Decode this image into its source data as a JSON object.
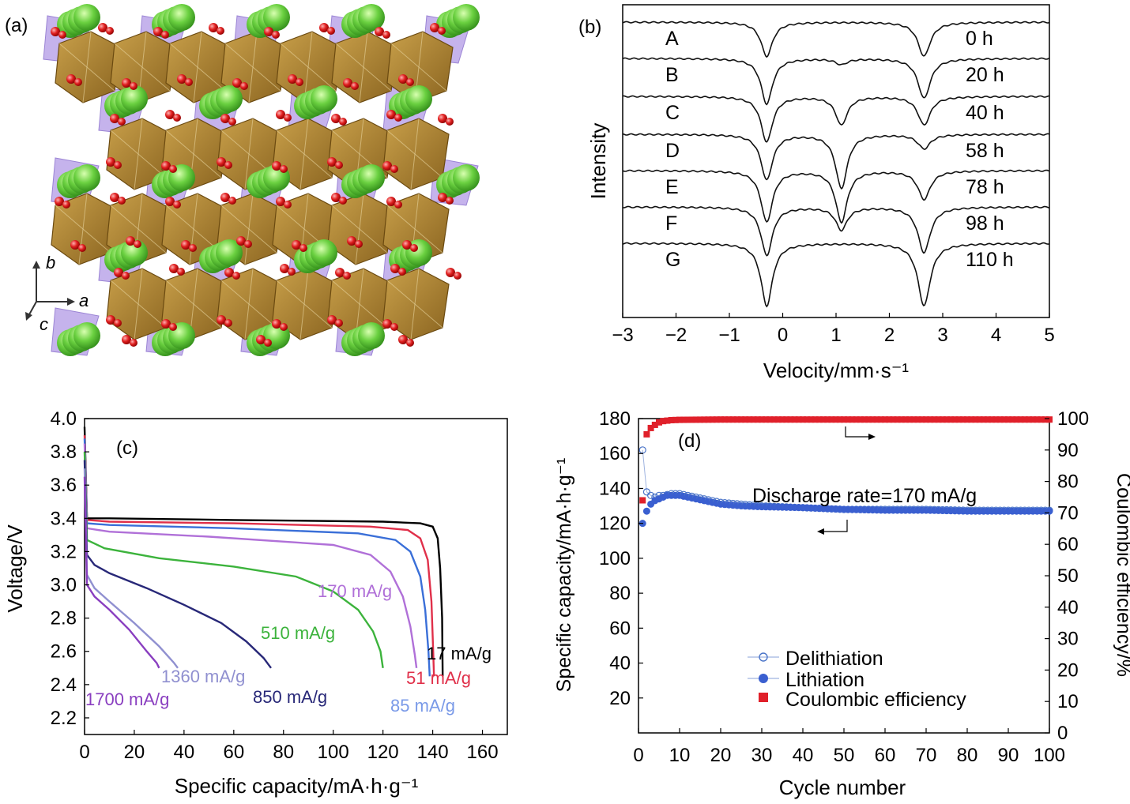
{
  "panels": {
    "a": {
      "label": "(a)",
      "axes": {
        "b": "b",
        "a": "a",
        "c": "c"
      }
    }
  },
  "chart_data": [
    {
      "id": "b",
      "type": "line",
      "panel_label": "(b)",
      "xlabel": "Velocity/mm·s⁻¹",
      "ylabel": "Intensity",
      "xlim": [
        -3,
        5
      ],
      "xticks": [
        -3,
        -2,
        -1,
        0,
        1,
        2,
        3,
        4,
        5
      ],
      "xtick_labels": [
        "−3",
        "−2",
        "−1",
        "0",
        "1",
        "2",
        "3",
        "4",
        "5"
      ],
      "series": [
        {
          "name": "A",
          "time": "0 h",
          "peak_depths": [
            0.24,
            0.0,
            0.24
          ]
        },
        {
          "name": "B",
          "time": "20 h",
          "peak_depths": [
            0.32,
            0.04,
            0.28
          ]
        },
        {
          "name": "C",
          "time": "40 h",
          "peak_depths": [
            0.32,
            0.2,
            0.2
          ]
        },
        {
          "name": "D",
          "time": "58 h",
          "peak_depths": [
            0.32,
            0.38,
            0.1
          ]
        },
        {
          "name": "E",
          "time": "78 h",
          "peak_depths": [
            0.36,
            0.36,
            0.2
          ]
        },
        {
          "name": "F",
          "time": "98 h",
          "peak_depths": [
            0.34,
            0.16,
            0.32
          ]
        },
        {
          "name": "G",
          "time": "110 h",
          "peak_depths": [
            0.44,
            0.0,
            0.44
          ]
        }
      ],
      "peak_positions": [
        -0.3,
        1.1,
        2.65
      ]
    },
    {
      "id": "c",
      "type": "line",
      "panel_label": "(c)",
      "xlabel": "Specific capacity/mA·h·g⁻¹",
      "ylabel": "Voltage/V",
      "xlim": [
        0,
        170
      ],
      "ylim": [
        2.1,
        4.0
      ],
      "xticks": [
        0,
        20,
        40,
        60,
        80,
        100,
        120,
        140,
        160
      ],
      "yticks": [
        2.2,
        2.4,
        2.6,
        2.8,
        3.0,
        3.2,
        3.4,
        3.6,
        3.8,
        4.0
      ],
      "ytick_labels": [
        "2.2",
        "2.4",
        "2.6",
        "2.8",
        "3.0",
        "3.2",
        "3.4",
        "3.6",
        "3.8",
        "4.0"
      ],
      "series": [
        {
          "name": "17 mA/g",
          "color": "#000000",
          "points": [
            [
              0,
              3.95
            ],
            [
              1,
              3.4
            ],
            [
              10,
              3.4
            ],
            [
              60,
              3.39
            ],
            [
              120,
              3.38
            ],
            [
              135,
              3.37
            ],
            [
              140,
              3.35
            ],
            [
              142,
              3.28
            ],
            [
              143,
              3.1
            ],
            [
              143.8,
              2.8
            ],
            [
              144,
              2.45
            ]
          ]
        },
        {
          "name": "51 mA/g",
          "color": "#e0304a",
          "points": [
            [
              0,
              3.9
            ],
            [
              1,
              3.39
            ],
            [
              10,
              3.38
            ],
            [
              60,
              3.37
            ],
            [
              115,
              3.35
            ],
            [
              130,
              3.33
            ],
            [
              135,
              3.28
            ],
            [
              138,
              3.15
            ],
            [
              139.5,
              2.9
            ],
            [
              140.2,
              2.6
            ],
            [
              140.5,
              2.45
            ]
          ]
        },
        {
          "name": "85 mA/g",
          "color": "#3a6fd8",
          "points": [
            [
              0,
              3.88
            ],
            [
              1,
              3.37
            ],
            [
              10,
              3.36
            ],
            [
              60,
              3.34
            ],
            [
              110,
              3.31
            ],
            [
              125,
              3.27
            ],
            [
              131,
              3.2
            ],
            [
              135,
              3.05
            ],
            [
              137,
              2.85
            ],
            [
              138.3,
              2.6
            ],
            [
              138.8,
              2.45
            ]
          ]
        },
        {
          "name": "170 mA/g",
          "color": "#b070d8",
          "points": [
            [
              0,
              3.85
            ],
            [
              1,
              3.34
            ],
            [
              10,
              3.32
            ],
            [
              50,
              3.29
            ],
            [
              100,
              3.24
            ],
            [
              115,
              3.18
            ],
            [
              123,
              3.08
            ],
            [
              128,
              2.93
            ],
            [
              131,
              2.75
            ],
            [
              132.8,
              2.58
            ],
            [
              133.5,
              2.5
            ]
          ]
        },
        {
          "name": "510 mA/g",
          "color": "#3cb33c",
          "points": [
            [
              0,
              3.8
            ],
            [
              1,
              3.27
            ],
            [
              8,
              3.22
            ],
            [
              30,
              3.16
            ],
            [
              60,
              3.11
            ],
            [
              85,
              3.05
            ],
            [
              100,
              2.96
            ],
            [
              110,
              2.85
            ],
            [
              116,
              2.72
            ],
            [
              119,
              2.6
            ],
            [
              120,
              2.5
            ]
          ]
        },
        {
          "name": "850 mA/g",
          "color": "#282878",
          "points": [
            [
              0,
              3.75
            ],
            [
              1,
              3.18
            ],
            [
              4,
              3.12
            ],
            [
              10,
              3.07
            ],
            [
              25,
              2.98
            ],
            [
              40,
              2.88
            ],
            [
              55,
              2.77
            ],
            [
              65,
              2.66
            ],
            [
              72,
              2.56
            ],
            [
              75,
              2.5
            ]
          ]
        },
        {
          "name": "1360 mA/g",
          "color": "#9090d0",
          "points": [
            [
              0,
              3.7
            ],
            [
              1,
              3.06
            ],
            [
              4,
              2.98
            ],
            [
              10,
              2.9
            ],
            [
              20,
              2.77
            ],
            [
              30,
              2.63
            ],
            [
              36,
              2.53
            ],
            [
              37.5,
              2.5
            ]
          ]
        },
        {
          "name": "1700 mA/g",
          "color": "#8a3fc0",
          "points": [
            [
              0,
              3.65
            ],
            [
              1,
              3.0
            ],
            [
              4,
              2.93
            ],
            [
              10,
              2.85
            ],
            [
              18,
              2.73
            ],
            [
              25,
              2.6
            ],
            [
              29,
              2.53
            ],
            [
              30,
              2.5
            ]
          ]
        }
      ],
      "labels": {
        "l17": "17 mA/g",
        "l51": "51 mA/g",
        "l85": "85 mA/g",
        "l170": "170 mA/g",
        "l510": "510 mA/g",
        "l850": "850 mA/g",
        "l1360": "1360 mA/g",
        "l1700": "1700 mA/g"
      }
    },
    {
      "id": "d",
      "type": "scatter",
      "panel_label": "(d)",
      "xlabel": "Cycle number",
      "ylabel": "Specific capacity/mA·h·g⁻¹",
      "y2label": "Coulombic efficiency/%",
      "annotation": "Discharge rate=170 mA/g",
      "xlim": [
        0,
        100
      ],
      "ylim": [
        0,
        180
      ],
      "y2lim": [
        0,
        100
      ],
      "xticks": [
        0,
        10,
        20,
        30,
        40,
        50,
        60,
        70,
        80,
        90,
        100
      ],
      "yticks": [
        20,
        40,
        60,
        80,
        100,
        120,
        140,
        160,
        180
      ],
      "y2ticks": [
        0,
        10,
        20,
        30,
        40,
        50,
        60,
        70,
        80,
        90,
        100
      ],
      "legend": [
        "Delithiation",
        "Lithiation",
        "Coulombic efficiency"
      ],
      "series": [
        {
          "name": "Delithiation",
          "axis": "left",
          "color": "#4a74c8",
          "values": [
            [
              1,
              162
            ],
            [
              2,
              138
            ],
            [
              3,
              136
            ],
            [
              4,
              135
            ],
            [
              5,
              136
            ],
            [
              6,
              136
            ],
            [
              7,
              136.5
            ],
            [
              8,
              137
            ],
            [
              9,
              137
            ],
            [
              10,
              137
            ],
            [
              11,
              136.5
            ],
            [
              12,
              136
            ],
            [
              14,
              135
            ],
            [
              16,
              134
            ],
            [
              18,
              133
            ],
            [
              20,
              132
            ],
            [
              25,
              131
            ],
            [
              30,
              130
            ],
            [
              40,
              129
            ],
            [
              50,
              128
            ],
            [
              60,
              128
            ],
            [
              70,
              128
            ],
            [
              80,
              127.5
            ],
            [
              90,
              127.5
            ],
            [
              100,
              127.5
            ]
          ]
        },
        {
          "name": "Lithiation",
          "axis": "left",
          "color": "#3a5fd0",
          "values": [
            [
              1,
              120
            ],
            [
              2,
              127
            ],
            [
              3,
              131
            ],
            [
              4,
              133
            ],
            [
              5,
              134
            ],
            [
              6,
              135
            ],
            [
              7,
              136
            ],
            [
              8,
              136
            ],
            [
              9,
              136
            ],
            [
              10,
              136
            ],
            [
              11,
              135.5
            ],
            [
              12,
              135
            ],
            [
              14,
              134
            ],
            [
              16,
              133
            ],
            [
              18,
              132
            ],
            [
              20,
              131
            ],
            [
              25,
              130
            ],
            [
              30,
              129.5
            ],
            [
              40,
              129
            ],
            [
              50,
              128
            ],
            [
              60,
              127.5
            ],
            [
              70,
              127.5
            ],
            [
              80,
              127
            ],
            [
              90,
              127
            ],
            [
              100,
              127
            ]
          ]
        },
        {
          "name": "Coulombic efficiency",
          "axis": "right",
          "color": "#e0202a",
          "values": [
            [
              1,
              74
            ],
            [
              2,
              95
            ],
            [
              3,
              97
            ],
            [
              4,
              98
            ],
            [
              5,
              98.8
            ],
            [
              6,
              99.2
            ],
            [
              8,
              99.5
            ],
            [
              10,
              99.6
            ],
            [
              20,
              99.7
            ],
            [
              40,
              99.7
            ],
            [
              60,
              99.7
            ],
            [
              80,
              99.7
            ],
            [
              100,
              99.7
            ]
          ]
        }
      ]
    }
  ]
}
